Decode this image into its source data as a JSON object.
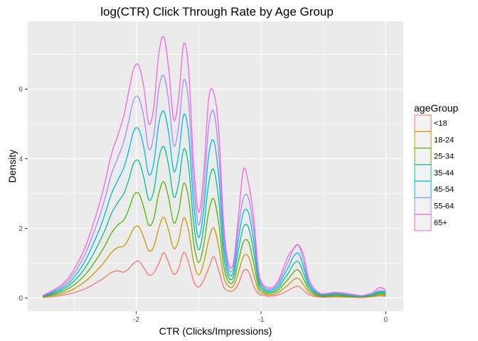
{
  "chart_data": {
    "type": "density-line",
    "title": "log(CTR) Click Through Rate by Age Group",
    "xlabel": "CTR (Clicks/Impressions)",
    "ylabel": "Density",
    "xlim": [
      -2.87,
      0.14
    ],
    "ylim": [
      -0.38,
      7.95
    ],
    "x_ticks": [
      -2,
      -1,
      0
    ],
    "y_ticks": [
      0,
      2,
      4,
      6
    ],
    "grid": true,
    "stacked": true,
    "legend": {
      "title": "ageGroup",
      "position": "right"
    },
    "series": [
      {
        "name": "<18",
        "color": "#F8766D"
      },
      {
        "name": "18-24",
        "color": "#C49A00"
      },
      {
        "name": "25-34",
        "color": "#53B400"
      },
      {
        "name": "35-44",
        "color": "#00C094"
      },
      {
        "name": "45-54",
        "color": "#00B6EB"
      },
      {
        "name": "55-64",
        "color": "#A58AFF"
      },
      {
        "name": "65+",
        "color": "#FB61D7"
      }
    ],
    "x": [
      -2.75,
      -2.6,
      -2.5,
      -2.4,
      -2.3,
      -2.25,
      -2.2,
      -2.15,
      -2.1,
      -2.06,
      -2.02,
      -1.98,
      -1.94,
      -1.9,
      -1.86,
      -1.82,
      -1.78,
      -1.74,
      -1.7,
      -1.66,
      -1.62,
      -1.58,
      -1.54,
      -1.5,
      -1.46,
      -1.42,
      -1.38,
      -1.34,
      -1.3,
      -1.26,
      -1.22,
      -1.18,
      -1.14,
      -1.1,
      -1.06,
      -1.02,
      -0.98,
      -0.94,
      -0.9,
      -0.86,
      -0.82,
      -0.78,
      -0.74,
      -0.7,
      -0.66,
      -0.62,
      -0.58,
      -0.54,
      -0.5,
      -0.4,
      -0.3,
      -0.2,
      -0.15,
      -0.1,
      -0.05,
      0
    ],
    "cumulative": [
      [
        0,
        0,
        0,
        0,
        0,
        0,
        0,
        0,
        0,
        0,
        0,
        0,
        0,
        0,
        0,
        0,
        0,
        0,
        0,
        0,
        0,
        0,
        0,
        0,
        0,
        0,
        0,
        0,
        0,
        0,
        0,
        0,
        0,
        0,
        0,
        0,
        0,
        0,
        0,
        0,
        0,
        0,
        0,
        0,
        0,
        0,
        0,
        0,
        0,
        0,
        0,
        0,
        0,
        0,
        0,
        0
      ],
      [
        0.01,
        0.07,
        0.15,
        0.28,
        0.48,
        0.6,
        0.73,
        0.78,
        0.74,
        0.84,
        1.0,
        1.06,
        0.87,
        0.66,
        0.72,
        0.99,
        1.3,
        1.0,
        0.68,
        0.85,
        1.31,
        1.0,
        0.48,
        0.31,
        0.52,
        0.85,
        1.19,
        0.8,
        0.32,
        0.2,
        0.21,
        0.42,
        0.78,
        0.76,
        0.35,
        0.11,
        0.07,
        0.05,
        0.06,
        0.09,
        0.15,
        0.22,
        0.3,
        0.33,
        0.22,
        0.1,
        0.05,
        0.03,
        0.02,
        0.03,
        0.02,
        0.01,
        0.02,
        0.04,
        0.06,
        0.05
      ],
      [
        0.02,
        0.12,
        0.26,
        0.5,
        0.85,
        1.06,
        1.3,
        1.45,
        1.49,
        1.71,
        2.0,
        2.05,
        1.73,
        1.36,
        1.47,
        2.0,
        2.32,
        1.93,
        1.42,
        1.67,
        2.3,
        1.92,
        1.02,
        0.66,
        1.01,
        1.66,
        2.02,
        1.48,
        0.62,
        0.33,
        0.35,
        0.75,
        1.2,
        1.18,
        0.68,
        0.22,
        0.12,
        0.09,
        0.1,
        0.16,
        0.27,
        0.38,
        0.52,
        0.56,
        0.38,
        0.18,
        0.09,
        0.05,
        0.04,
        0.05,
        0.04,
        0.02,
        0.03,
        0.05,
        0.09,
        0.08
      ],
      [
        0.03,
        0.17,
        0.37,
        0.71,
        1.21,
        1.51,
        1.86,
        2.09,
        2.24,
        2.55,
        2.95,
        3.0,
        2.6,
        2.09,
        2.27,
        3.0,
        3.34,
        2.86,
        2.16,
        2.49,
        3.29,
        2.84,
        1.58,
        1.02,
        1.52,
        2.47,
        2.85,
        2.16,
        0.93,
        0.46,
        0.49,
        1.08,
        1.62,
        1.6,
        1.01,
        0.33,
        0.17,
        0.13,
        0.15,
        0.23,
        0.39,
        0.55,
        0.74,
        0.8,
        0.55,
        0.26,
        0.13,
        0.07,
        0.05,
        0.07,
        0.05,
        0.03,
        0.05,
        0.07,
        0.12,
        0.11
      ],
      [
        0.04,
        0.22,
        0.48,
        0.92,
        1.57,
        1.96,
        2.42,
        2.73,
        3.0,
        3.4,
        3.88,
        3.93,
        3.46,
        2.82,
        3.07,
        4.0,
        4.35,
        3.79,
        2.9,
        3.31,
        4.28,
        3.76,
        2.14,
        1.38,
        2.03,
        3.29,
        3.69,
        2.83,
        1.23,
        0.59,
        0.63,
        1.41,
        2.05,
        2.02,
        1.34,
        0.45,
        0.22,
        0.17,
        0.19,
        0.3,
        0.51,
        0.72,
        0.97,
        1.04,
        0.72,
        0.34,
        0.17,
        0.1,
        0.07,
        0.1,
        0.07,
        0.04,
        0.06,
        0.09,
        0.15,
        0.14
      ],
      [
        0.05,
        0.27,
        0.59,
        1.13,
        1.93,
        2.42,
        2.98,
        3.37,
        3.74,
        4.24,
        4.8,
        4.85,
        4.33,
        3.55,
        3.87,
        5.0,
        5.37,
        4.72,
        3.64,
        4.13,
        5.27,
        4.68,
        2.7,
        1.74,
        2.54,
        4.1,
        4.52,
        3.51,
        1.54,
        0.72,
        0.77,
        1.74,
        2.47,
        2.44,
        1.67,
        0.56,
        0.27,
        0.21,
        0.24,
        0.37,
        0.63,
        0.89,
        1.19,
        1.28,
        0.89,
        0.42,
        0.21,
        0.12,
        0.09,
        0.12,
        0.09,
        0.05,
        0.08,
        0.12,
        0.18,
        0.17
      ],
      [
        0.06,
        0.32,
        0.7,
        1.34,
        2.29,
        2.88,
        3.55,
        4.01,
        4.49,
        5.09,
        5.7,
        5.75,
        5.2,
        4.28,
        4.67,
        6.0,
        6.39,
        5.65,
        4.38,
        4.95,
        6.26,
        5.6,
        3.26,
        2.1,
        3.05,
        4.91,
        5.36,
        4.19,
        1.85,
        0.85,
        0.91,
        2.07,
        2.89,
        2.86,
        2.0,
        0.67,
        0.32,
        0.25,
        0.28,
        0.44,
        0.75,
        1.06,
        1.41,
        1.52,
        1.06,
        0.5,
        0.25,
        0.14,
        0.1,
        0.14,
        0.1,
        0.06,
        0.09,
        0.14,
        0.21,
        0.2
      ],
      [
        0.07,
        0.37,
        0.81,
        1.55,
        2.65,
        3.34,
        4.12,
        4.65,
        5.24,
        5.94,
        6.6,
        6.68,
        6.07,
        5.01,
        5.47,
        7.0,
        7.5,
        6.58,
        5.12,
        5.77,
        7.3,
        6.52,
        3.82,
        2.46,
        3.56,
        5.72,
        5.9,
        4.86,
        2.15,
        0.98,
        1.05,
        2.4,
        3.7,
        3.28,
        2.33,
        0.78,
        0.37,
        0.29,
        0.32,
        0.51,
        0.87,
        1.23,
        1.41,
        1.52,
        1.23,
        0.58,
        0.29,
        0.16,
        0.12,
        0.16,
        0.12,
        0.07,
        0.1,
        0.16,
        0.3,
        0.23
      ]
    ]
  }
}
